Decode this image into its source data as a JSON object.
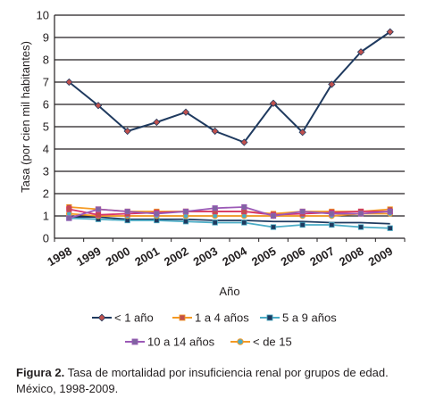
{
  "caption": {
    "label": "Figura 2.",
    "text": " Tasa de mortalidad por insuficiencia renal por grupos de edad. México, 1998-2009."
  },
  "chart_data": {
    "type": "line",
    "xlabel": "Año",
    "ylabel": "Tasa (por cien mil habitantes)",
    "ylim": [
      0,
      10
    ],
    "yticks": [
      0,
      1,
      2,
      3,
      4,
      5,
      6,
      7,
      8,
      9,
      10
    ],
    "grid": "horizontal",
    "legend_position": "bottom",
    "categories": [
      "1998",
      "1999",
      "2000",
      "2001",
      "2002",
      "2003",
      "2004",
      "2005",
      "2006",
      "2007",
      "2008",
      "2009"
    ],
    "series": [
      {
        "name": "< 1 año",
        "color": "#1f3a5f",
        "marker": "diamond",
        "marker_color": "#c0504d",
        "values": [
          7.0,
          5.95,
          4.8,
          5.2,
          5.65,
          4.8,
          4.3,
          6.05,
          4.75,
          6.9,
          8.35,
          9.25
        ]
      },
      {
        "name": "1 a 4 años",
        "color": "#f59a23",
        "marker": "square",
        "marker_color": "#c0504d",
        "values": [
          1.4,
          1.3,
          1.2,
          1.2,
          1.2,
          1.2,
          1.2,
          1.1,
          1.2,
          1.2,
          1.2,
          1.3
        ]
      },
      {
        "name": "5 a 9 años",
        "color": "#4bacc6",
        "marker": "square",
        "marker_color": "#1f3a5f",
        "values": [
          0.9,
          0.85,
          0.8,
          0.8,
          0.75,
          0.7,
          0.7,
          0.5,
          0.6,
          0.6,
          0.5,
          0.45
        ]
      },
      {
        "name": "10 a 14 años",
        "color": "#9b59b6",
        "marker": "square",
        "marker_color": "#8064a2",
        "values": [
          0.9,
          1.3,
          1.2,
          1.1,
          1.2,
          1.35,
          1.4,
          1.0,
          1.2,
          1.1,
          1.1,
          1.2
        ]
      },
      {
        "name": "< de 15",
        "color": "#f59a23",
        "marker": "circle",
        "marker_color": "#4bacc6",
        "values": [
          1.1,
          1.0,
          1.0,
          1.0,
          1.0,
          1.0,
          1.0,
          1.0,
          1.0,
          1.0,
          1.1,
          1.1
        ]
      },
      {
        "name": "",
        "color": "#1f3a5f",
        "marker": "none",
        "marker_color": "#1f3a5f",
        "values": [
          0.95,
          0.95,
          0.85,
          0.85,
          0.85,
          0.8,
          0.8,
          0.75,
          0.75,
          0.7,
          0.7,
          0.65
        ]
      },
      {
        "name": "",
        "color": "#d6336c",
        "marker": "square",
        "marker_color": "#c0504d",
        "values": [
          1.3,
          1.05,
          1.1,
          1.15,
          1.2,
          1.2,
          1.2,
          1.05,
          1.1,
          1.15,
          1.2,
          1.2
        ]
      }
    ],
    "legend": [
      "< 1 año",
      "1 a 4 años",
      "5 a 9 años",
      "10 a 14 años",
      "< de 15"
    ]
  }
}
